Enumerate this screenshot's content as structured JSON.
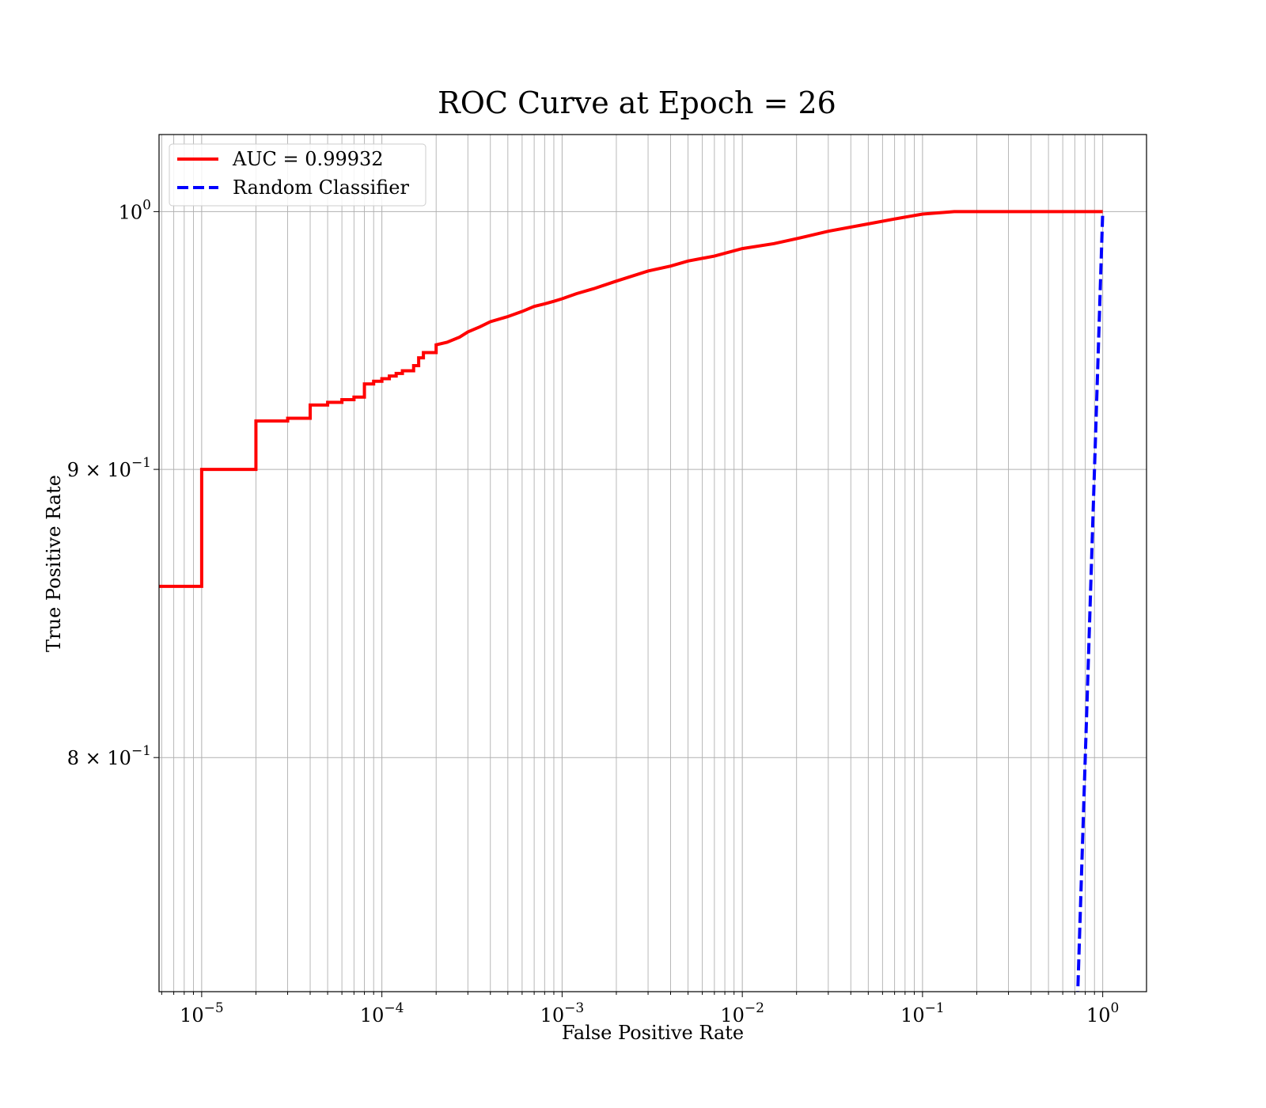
{
  "chart_data": {
    "type": "line",
    "title": "ROC Curve at Epoch = 26",
    "xlabel": "False Positive Rate",
    "ylabel": "True Positive Rate",
    "xscale": "log",
    "yscale": "log",
    "xlim": [
      5.8e-06,
      1.75
    ],
    "ylim": [
      0.727,
      1.032
    ],
    "grid": true,
    "grid_minor": true,
    "legend_placement": "top-left",
    "x_ticks": [
      {
        "value": 1e-05,
        "base": "10",
        "exp": "−5"
      },
      {
        "value": 0.0001,
        "base": "10",
        "exp": "−4"
      },
      {
        "value": 0.001,
        "base": "10",
        "exp": "−3"
      },
      {
        "value": 0.01,
        "base": "10",
        "exp": "−2"
      },
      {
        "value": 0.1,
        "base": "10",
        "exp": "−1"
      },
      {
        "value": 1,
        "base": "10",
        "exp": "0"
      }
    ],
    "y_ticks": [
      {
        "value": 1.0,
        "mant": "",
        "base": "10",
        "exp": "0"
      },
      {
        "value": 0.9,
        "mant": "9 × ",
        "base": "10",
        "exp": "−1"
      },
      {
        "value": 0.8,
        "mant": "8 × ",
        "base": "10",
        "exp": "−1"
      }
    ],
    "series": [
      {
        "name": "AUC = 0.99932",
        "color": "#ff0000",
        "style": "solid",
        "x": [
          5.8e-06,
          1e-05,
          1e-05,
          2e-05,
          2e-05,
          3e-05,
          3e-05,
          4e-05,
          4e-05,
          5e-05,
          5e-05,
          6e-05,
          6e-05,
          7e-05,
          7e-05,
          8e-05,
          8e-05,
          9e-05,
          9e-05,
          0.0001,
          0.0001,
          0.00011,
          0.00011,
          0.00012,
          0.00012,
          0.00013,
          0.00013,
          0.00015,
          0.00015,
          0.00016,
          0.00016,
          0.00017,
          0.00017,
          0.0002,
          0.0002,
          0.00023,
          0.00027,
          0.0003,
          0.00035,
          0.0004,
          0.0005,
          0.0006,
          0.0007,
          0.0008,
          0.0009,
          0.001,
          0.0012,
          0.0015,
          0.002,
          0.003,
          0.004,
          0.005,
          0.007,
          0.01,
          0.015,
          0.02,
          0.03,
          0.05,
          0.07,
          0.1,
          0.15,
          0.2,
          0.3,
          0.5,
          1.0
        ],
        "y": [
          0.858,
          0.858,
          0.9,
          0.9,
          0.918,
          0.918,
          0.919,
          0.919,
          0.924,
          0.924,
          0.925,
          0.925,
          0.926,
          0.926,
          0.927,
          0.927,
          0.932,
          0.932,
          0.933,
          0.933,
          0.934,
          0.934,
          0.935,
          0.935,
          0.936,
          0.936,
          0.937,
          0.937,
          0.939,
          0.939,
          0.942,
          0.942,
          0.944,
          0.944,
          0.947,
          0.948,
          0.95,
          0.952,
          0.954,
          0.956,
          0.958,
          0.96,
          0.962,
          0.963,
          0.964,
          0.965,
          0.967,
          0.969,
          0.972,
          0.976,
          0.978,
          0.98,
          0.982,
          0.985,
          0.987,
          0.989,
          0.992,
          0.995,
          0.997,
          0.999,
          1.0,
          1.0,
          1.0,
          1.0,
          1.0
        ]
      },
      {
        "name": "Random Classifier",
        "color": "#0000ff",
        "style": "dashed",
        "x": [
          0.71,
          1.0
        ],
        "y": [
          0.71,
          1.0
        ]
      }
    ]
  }
}
